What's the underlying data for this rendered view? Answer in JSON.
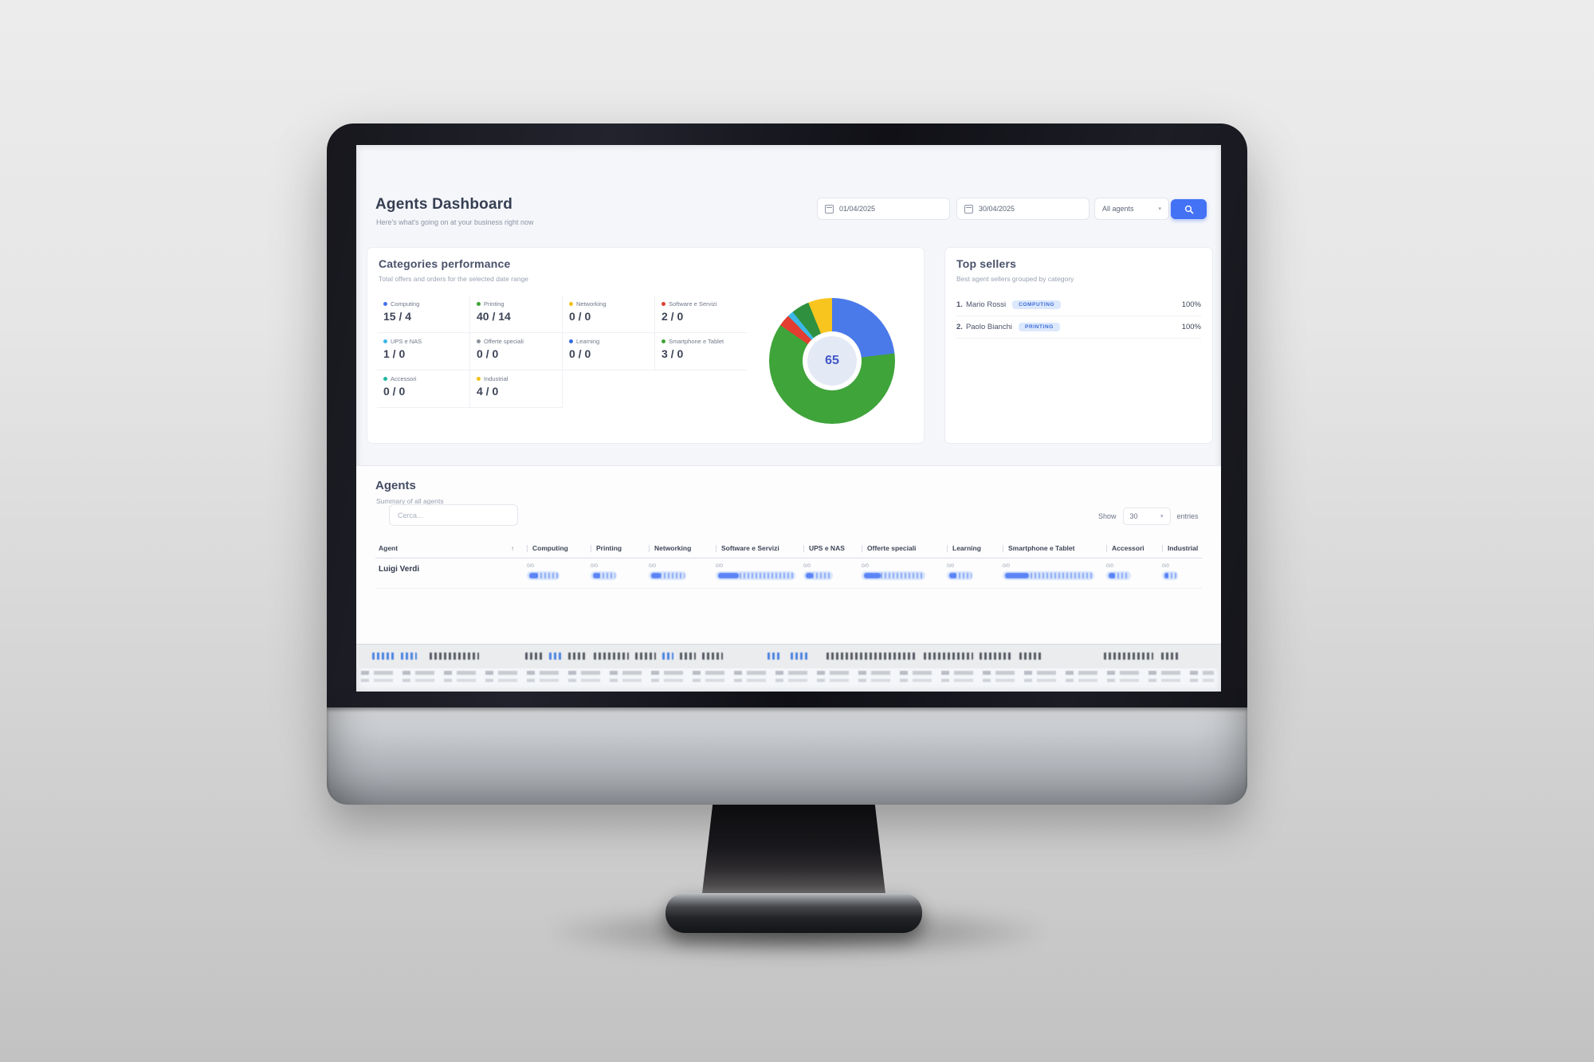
{
  "header": {
    "title": "Agents Dashboard",
    "subtitle": "Here's what's going on at your business right now"
  },
  "filters": {
    "date_from": "01/04/2025",
    "date_to": "30/04/2025",
    "agents_dropdown": "All agents"
  },
  "icons": {
    "chevron_down": "▾",
    "sort_asc": "↑"
  },
  "categories": {
    "title": "Categories performance",
    "subtitle": "Total offers and orders for the selected date range",
    "items": [
      {
        "label": "Computing",
        "value": "15 / 4",
        "color": "#4472f5"
      },
      {
        "label": "Printing",
        "value": "40 / 14",
        "color": "#3fa43a"
      },
      {
        "label": "Networking",
        "value": "0 / 0",
        "color": "#f2c117"
      },
      {
        "label": "Software e Servizi",
        "value": "2 / 0",
        "color": "#e23d30"
      },
      {
        "label": "UPS e NAS",
        "value": "1 / 0",
        "color": "#3cb7e8"
      },
      {
        "label": "Offerte speciali",
        "value": "0 / 0",
        "color": "#8d939e"
      },
      {
        "label": "Learning",
        "value": "0 / 0",
        "color": "#3568e0"
      },
      {
        "label": "Smartphone e Tablet",
        "value": "3 / 0",
        "color": "#3fa43a"
      },
      {
        "label": "Accessori",
        "value": "0 / 0",
        "color": "#1db9a2"
      },
      {
        "label": "Industrial",
        "value": "4 / 0",
        "color": "#f2c117"
      }
    ]
  },
  "chart_data": {
    "type": "pie",
    "title": "Categories performance donut",
    "center_label": "65",
    "total": 65,
    "legend_position": "left",
    "segments": [
      {
        "label": "Computing",
        "value": 15,
        "color": "#4a79ea"
      },
      {
        "label": "Printing",
        "value": 40,
        "color": "#3fa43a"
      },
      {
        "label": "Software e Servizi",
        "value": 2,
        "color": "#e23d30"
      },
      {
        "label": "UPS e NAS",
        "value": 1,
        "color": "#3cb7e8"
      },
      {
        "label": "Smartphone e Tablet",
        "value": 3,
        "color": "#2f9140"
      },
      {
        "label": "Industrial",
        "value": 4,
        "color": "#f7c51e"
      }
    ]
  },
  "top_sellers": {
    "title": "Top sellers",
    "subtitle": "Best agent sellers grouped by category",
    "items": [
      {
        "rank": "1.",
        "name": "Mario Rossi",
        "badge": "COMPUTING",
        "value": "100%"
      },
      {
        "rank": "2.",
        "name": "Paolo Bianchi",
        "badge": "PRINTING",
        "value": "100%"
      }
    ]
  },
  "agents": {
    "title": "Agents",
    "subtitle": "Summary of all agents",
    "search_placeholder": "Cerca...",
    "show_label": "Show",
    "page_size": "30",
    "entries_label": "entries",
    "table": {
      "columns": [
        "Agent",
        "Computing",
        "Printing",
        "Networking",
        "Software e Servizi",
        "UPS e NAS",
        "Offerte speciali",
        "Learning",
        "Smartphone e Tablet",
        "Accessori",
        "Industrial"
      ],
      "rows": [
        {
          "agent": "Luigi Verdi",
          "cells": [
            {
              "value": "0/0",
              "bar_pct": 58
            },
            {
              "value": "0/0",
              "bar_pct": 52
            },
            {
              "value": "0/0",
              "bar_pct": 64
            },
            {
              "value": "0/0",
              "bar_pct": 100
            },
            {
              "value": "0/0",
              "bar_pct": 58
            },
            {
              "value": "0/0",
              "bar_pct": 82
            },
            {
              "value": "0/0",
              "bar_pct": 55
            },
            {
              "value": "0/0",
              "bar_pct": 96
            },
            {
              "value": "0/0",
              "bar_pct": 52
            },
            {
              "value": "0/0",
              "bar_pct": 45
            }
          ]
        }
      ]
    }
  }
}
